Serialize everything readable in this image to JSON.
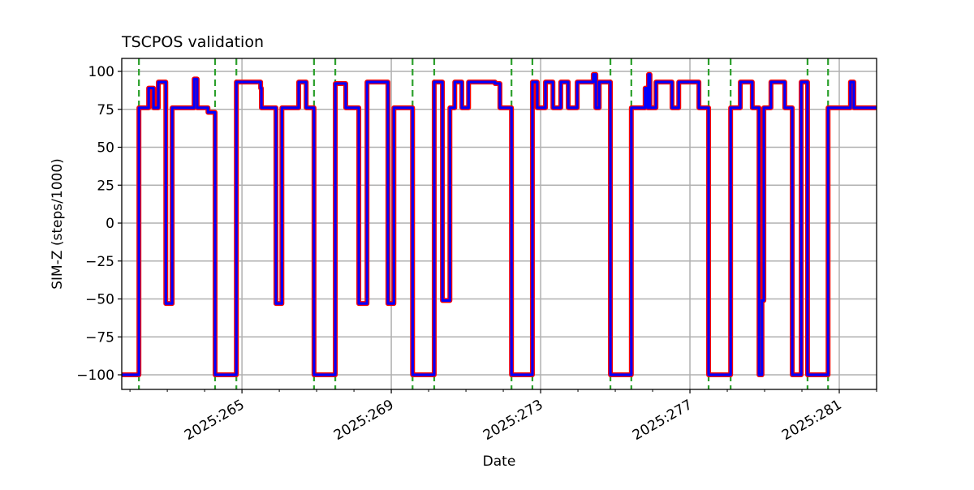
{
  "chart_data": {
    "type": "line",
    "title": "TSCPOS validation",
    "xlabel": "Date",
    "ylabel": "SIM-Z (steps/1000)",
    "xlim": [
      261.78,
      282.0
    ],
    "ylim": [
      -109,
      108
    ],
    "grid": true,
    "x_ticks": [
      265,
      269,
      273,
      277,
      281
    ],
    "x_tick_labels": [
      "2025:265",
      "2025:269",
      "2025:273",
      "2025:277",
      "2025:281"
    ],
    "x_minor_ticks": [
      262,
      263,
      264,
      266,
      267,
      268,
      270,
      271,
      272,
      274,
      275,
      276,
      278,
      279,
      280,
      282
    ],
    "y_ticks": [
      100,
      75,
      50,
      25,
      0,
      -25,
      -50,
      -75,
      -100
    ],
    "y_tick_labels": [
      "100",
      "75",
      "50",
      "25",
      "0",
      "−25",
      "−50",
      "−75",
      "−100"
    ],
    "vlines": [
      262.24,
      264.28,
      264.85,
      266.93,
      267.5,
      269.57,
      270.15,
      272.22,
      272.78,
      274.87,
      275.43,
      277.5,
      278.09,
      280.15,
      280.7
    ],
    "colors": {
      "line_outer": "#ff0000",
      "line_inner": "#0000ff",
      "vline": "#2ca02c",
      "grid": "#b0b0b0"
    },
    "series": [
      {
        "name": "SIM-Z",
        "step": "post",
        "x": [
          261.78,
          262.24,
          262.5,
          262.63,
          262.76,
          262.96,
          263.13,
          263.72,
          263.8,
          264.09,
          264.28,
          264.85,
          265.5,
          265.52,
          265.91,
          266.07,
          266.52,
          266.72,
          266.93,
          267.5,
          267.78,
          268.13,
          268.35,
          268.91,
          269.07,
          269.57,
          270.15,
          270.37,
          270.57,
          270.7,
          270.89,
          271.07,
          271.78,
          271.91,
          272.22,
          272.78,
          272.91,
          273.13,
          273.33,
          273.54,
          273.74,
          273.98,
          274.41,
          274.48,
          274.57,
          274.87,
          275.43,
          275.8,
          275.87,
          275.89,
          275.93,
          276.09,
          276.52,
          276.7,
          277.24,
          277.5,
          278.09,
          278.35,
          278.67,
          278.85,
          278.93,
          278.98,
          279.17,
          279.54,
          279.74,
          279.98,
          280.15,
          280.7,
          281.3,
          281.39,
          282.0
        ],
        "y": [
          -100,
          76,
          89,
          76,
          93,
          -53,
          76,
          95,
          76,
          73,
          -100,
          93,
          89,
          76,
          -53,
          76,
          93,
          76,
          -100,
          92,
          76,
          -53,
          93,
          -53,
          76,
          -100,
          93,
          -51,
          76,
          93,
          76,
          93,
          92,
          76,
          -100,
          93,
          76,
          93,
          76,
          93,
          76,
          93,
          98,
          76,
          93,
          -100,
          76,
          89,
          76,
          98,
          76,
          93,
          76,
          93,
          76,
          -100,
          76,
          93,
          76,
          -100,
          -51,
          76,
          93,
          76,
          -100,
          93,
          -100,
          76,
          93,
          76,
          76
        ]
      }
    ]
  }
}
